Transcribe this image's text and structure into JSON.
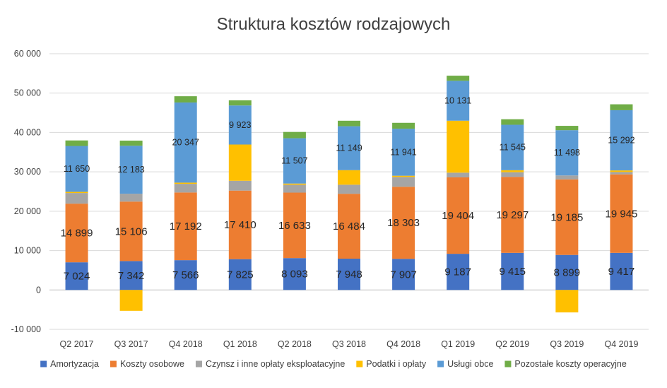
{
  "chart_data": {
    "type": "stacked-bar",
    "title": "Struktura kosztów rodzajowych",
    "categories": [
      "Q2 2017",
      "Q3 2017",
      "Q4 2018",
      "Q1 2018",
      "Q2 2018",
      "Q3 2018",
      "Q4 2018",
      "Q1 2019",
      "Q2 2019",
      "Q3 2019",
      "Q4 2019"
    ],
    "ylim": [
      -10000,
      60000
    ],
    "yticks": [
      -10000,
      0,
      10000,
      20000,
      30000,
      40000,
      50000,
      60000
    ],
    "ytick_labels": [
      "-10 000",
      "0",
      "10 000",
      "20 000",
      "30 000",
      "40 000",
      "50 000",
      "60 000"
    ],
    "grid": true,
    "legend_position": "bottom",
    "series": [
      {
        "name": "Amortyzacja",
        "color": "#4472C4",
        "values": [
          7024,
          7342,
          7566,
          7825,
          8093,
          7948,
          7907,
          9187,
          9415,
          8899,
          9417
        ],
        "labels": [
          "7 024",
          "7 342",
          "7 566",
          "7 825",
          "8 093",
          "7 948",
          "7 907",
          "9 187",
          "9 415",
          "8 899",
          "9 417"
        ]
      },
      {
        "name": "Koszty osobowe",
        "color": "#ED7D31",
        "values": [
          14899,
          15106,
          17192,
          17410,
          16633,
          16484,
          18303,
          19404,
          19297,
          19185,
          19945
        ],
        "labels": [
          "14 899",
          "15 106",
          "17 192",
          "17 410",
          "16 633",
          "16 484",
          "18 303",
          "19 404",
          "19 297",
          "19 185",
          "19 945"
        ]
      },
      {
        "name": "Czynsz i inne opłaty eksploatacyjne",
        "color": "#A5A5A5",
        "values": [
          2700,
          2000,
          2200,
          2500,
          2000,
          2300,
          2500,
          1200,
          1200,
          1000,
          600
        ]
      },
      {
        "name": "Podatki i opłaty",
        "color": "#FFC000",
        "values": [
          300,
          -5300,
          300,
          9200,
          300,
          3700,
          300,
          13200,
          500,
          -5700,
          400
        ]
      },
      {
        "name": "Usługi obce",
        "color": "#5B9BD5",
        "values": [
          11650,
          12183,
          20347,
          9923,
          11507,
          11149,
          11941,
          10131,
          11545,
          11498,
          15292
        ],
        "labels": [
          "11 650",
          "12 183",
          "20 347",
          "9 923",
          "11 507",
          "11 149",
          "11 941",
          "10 131",
          "11 545",
          "11 498",
          "15 292"
        ]
      },
      {
        "name": "Pozostałe koszty operacyjne",
        "color": "#70AD47",
        "values": [
          1400,
          1300,
          1600,
          1300,
          1600,
          1400,
          1500,
          1300,
          1400,
          1100,
          1500
        ]
      }
    ]
  }
}
